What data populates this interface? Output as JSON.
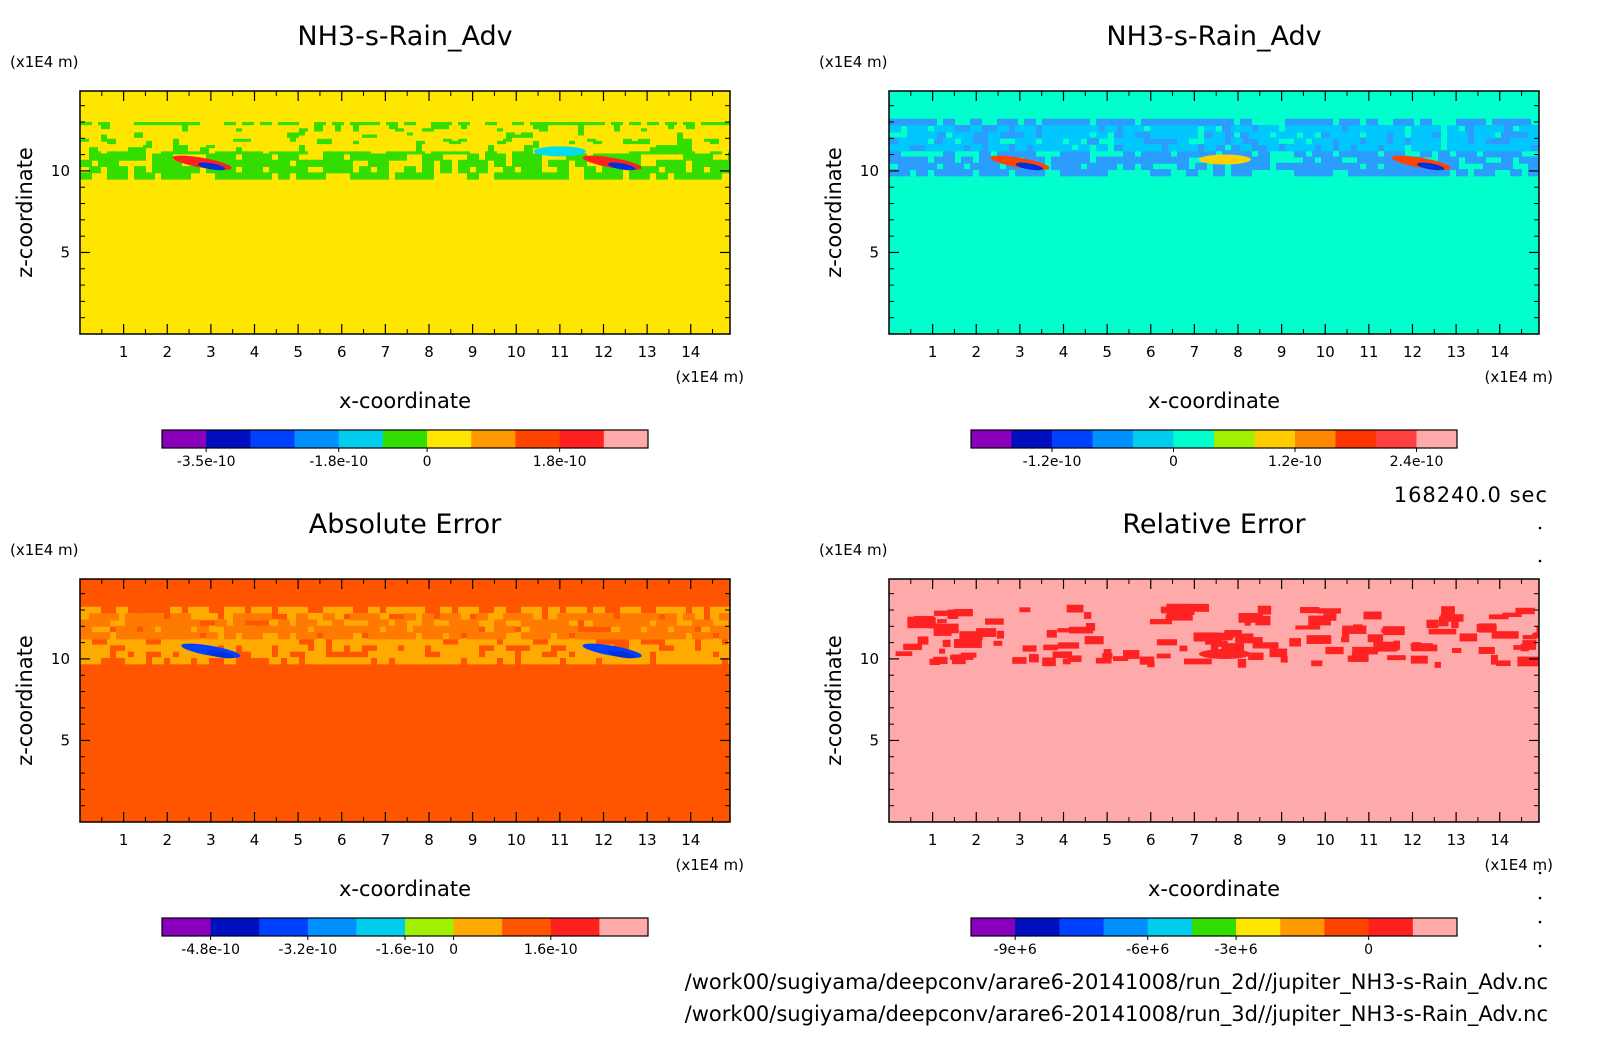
{
  "time_label": "168240.0 sec",
  "footer_paths": [
    "/work00/sugiyama/deepconv/arare6-20141008/run_2d//jupiter_NH3-s-Rain_Adv.nc",
    "/work00/sugiyama/deepconv/arare6-20141008/run_3d//jupiter_NH3-s-Rain_Adv.nc"
  ],
  "chart_data": [
    {
      "type": "heatmap",
      "title": "NH3-s-Rain_Adv",
      "xlabel": "x-coordinate",
      "ylabel": "z-coordinate",
      "x_unit": "(x1E4 m)",
      "y_unit": "(x1E4 m)",
      "x_ticks": [
        "1",
        "2",
        "3",
        "4",
        "5",
        "6",
        "7",
        "8",
        "9",
        "10",
        "11",
        "12",
        "13",
        "14"
      ],
      "y_ticks": [
        "5",
        "10"
      ],
      "xlim": [
        0,
        14.9
      ],
      "ylim": [
        0,
        14.9
      ],
      "background_color": "#ffe600",
      "structures": [
        {
          "kind": "band",
          "z_range": [
            9.8,
            13.0
          ],
          "color": "#33dd00"
        },
        {
          "kind": "band",
          "z_range": [
            11.4,
            12.8
          ],
          "color": "#ffe600"
        },
        {
          "kind": "blob",
          "x": 11.0,
          "z": 11.2,
          "color": "#00ddee"
        },
        {
          "kind": "streak",
          "x": 2.8,
          "z": 10.5,
          "color": "#ff2020"
        },
        {
          "kind": "streak",
          "x": 12.2,
          "z": 10.5,
          "color": "#ff2020"
        }
      ],
      "colorbar": {
        "colors": [
          "#8800bb",
          "#0010c0",
          "#0040ff",
          "#0090ff",
          "#00ccee",
          "#33dd00",
          "#ffe600",
          "#ff9900",
          "#ff4400",
          "#ff2020",
          "#ffaaaa"
        ],
        "tick_labels": [
          "-3.5e-10",
          "-1.8e-10",
          "0",
          "1.8e-10"
        ]
      }
    },
    {
      "type": "heatmap",
      "title": "NH3-s-Rain_Adv",
      "xlabel": "x-coordinate",
      "ylabel": "z-coordinate",
      "x_unit": "(x1E4 m)",
      "y_unit": "(x1E4 m)",
      "x_ticks": [
        "1",
        "2",
        "3",
        "4",
        "5",
        "6",
        "7",
        "8",
        "9",
        "10",
        "11",
        "12",
        "13",
        "14"
      ],
      "y_ticks": [
        "5",
        "10"
      ],
      "xlim": [
        0,
        14.9
      ],
      "ylim": [
        0,
        14.9
      ],
      "background_color": "#00ffcc",
      "structures": [
        {
          "kind": "band",
          "z_range": [
            9.8,
            13.2
          ],
          "color": "#2a9dff"
        },
        {
          "kind": "band",
          "z_range": [
            11.4,
            12.8
          ],
          "color": "#00c8ff"
        },
        {
          "kind": "blob",
          "x": 7.7,
          "z": 10.7,
          "color": "#ffd000"
        },
        {
          "kind": "streak",
          "x": 3.0,
          "z": 10.5,
          "color": "#ff4400"
        },
        {
          "kind": "streak",
          "x": 12.2,
          "z": 10.5,
          "color": "#ff4400"
        }
      ],
      "colorbar": {
        "colors": [
          "#8800bb",
          "#0010c0",
          "#0040ff",
          "#0090ff",
          "#00ccee",
          "#00ffcc",
          "#a0f000",
          "#ffcc00",
          "#ff8800",
          "#ff3300",
          "#ff4040",
          "#ffaaaa"
        ],
        "tick_labels": [
          "-1.2e-10",
          "0",
          "1.2e-10",
          "2.4e-10"
        ]
      }
    },
    {
      "type": "heatmap",
      "title": "Absolute Error",
      "xlabel": "x-coordinate",
      "ylabel": "z-coordinate",
      "x_unit": "(x1E4 m)",
      "y_unit": "(x1E4 m)",
      "x_ticks": [
        "1",
        "2",
        "3",
        "4",
        "5",
        "6",
        "7",
        "8",
        "9",
        "10",
        "11",
        "12",
        "13",
        "14"
      ],
      "y_ticks": [
        "5",
        "10"
      ],
      "xlim": [
        0,
        14.9
      ],
      "ylim": [
        0,
        14.9
      ],
      "background_color": "#ff5500",
      "structures": [
        {
          "kind": "band",
          "z_range": [
            9.8,
            13.2
          ],
          "color": "#ffaa00"
        },
        {
          "kind": "band",
          "z_range": [
            11.4,
            12.8
          ],
          "color": "#ff7a00"
        },
        {
          "kind": "streak",
          "x": 3.0,
          "z": 10.5,
          "color": "#0040ff"
        },
        {
          "kind": "streak",
          "x": 12.2,
          "z": 10.5,
          "color": "#0040ff"
        }
      ],
      "colorbar": {
        "colors": [
          "#8800bb",
          "#0010c0",
          "#0040ff",
          "#0090ff",
          "#00ccee",
          "#a0f000",
          "#ffaa00",
          "#ff5500",
          "#ff2020",
          "#ffaaaa"
        ],
        "tick_labels": [
          "-4.8e-10",
          "-3.2e-10",
          "-1.6e-10",
          "0",
          "1.6e-10"
        ]
      }
    },
    {
      "type": "heatmap",
      "title": "Relative Error",
      "xlabel": "x-coordinate",
      "ylabel": "z-coordinate",
      "x_unit": "(x1E4 m)",
      "y_unit": "(x1E4 m)",
      "x_ticks": [
        "1",
        "2",
        "3",
        "4",
        "5",
        "6",
        "7",
        "8",
        "9",
        "10",
        "11",
        "12",
        "13",
        "14"
      ],
      "y_ticks": [
        "5",
        "10"
      ],
      "xlim": [
        0,
        14.9
      ],
      "ylim": [
        0,
        14.9
      ],
      "background_color": "#ffaaaa",
      "structures": [
        {
          "kind": "patches",
          "z_range": [
            9.8,
            13.4
          ],
          "color": "#ff2222"
        },
        {
          "kind": "blob",
          "x": 7.7,
          "z": 10.3,
          "color": "#ff2222"
        }
      ],
      "colorbar": {
        "colors": [
          "#8800bb",
          "#0010c0",
          "#0040ff",
          "#0090ff",
          "#00ccee",
          "#33dd00",
          "#ffe600",
          "#ff9900",
          "#ff4400",
          "#ff2020",
          "#ffaaaa"
        ],
        "tick_labels": [
          "-9e+6",
          "-6e+6",
          "-3e+6",
          "0"
        ]
      }
    }
  ]
}
